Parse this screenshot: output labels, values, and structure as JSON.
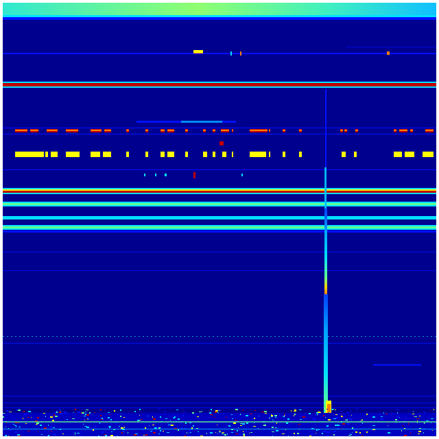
{
  "heatmap": {
    "colormap": "jet",
    "colors": {
      "background": "#00008f",
      "blue": "#0010ff",
      "cyan": "#00e0ff",
      "green": "#60ff90",
      "yellow": "#ffff00",
      "orange": "#ff8000",
      "red": "#c00000"
    }
  }
}
